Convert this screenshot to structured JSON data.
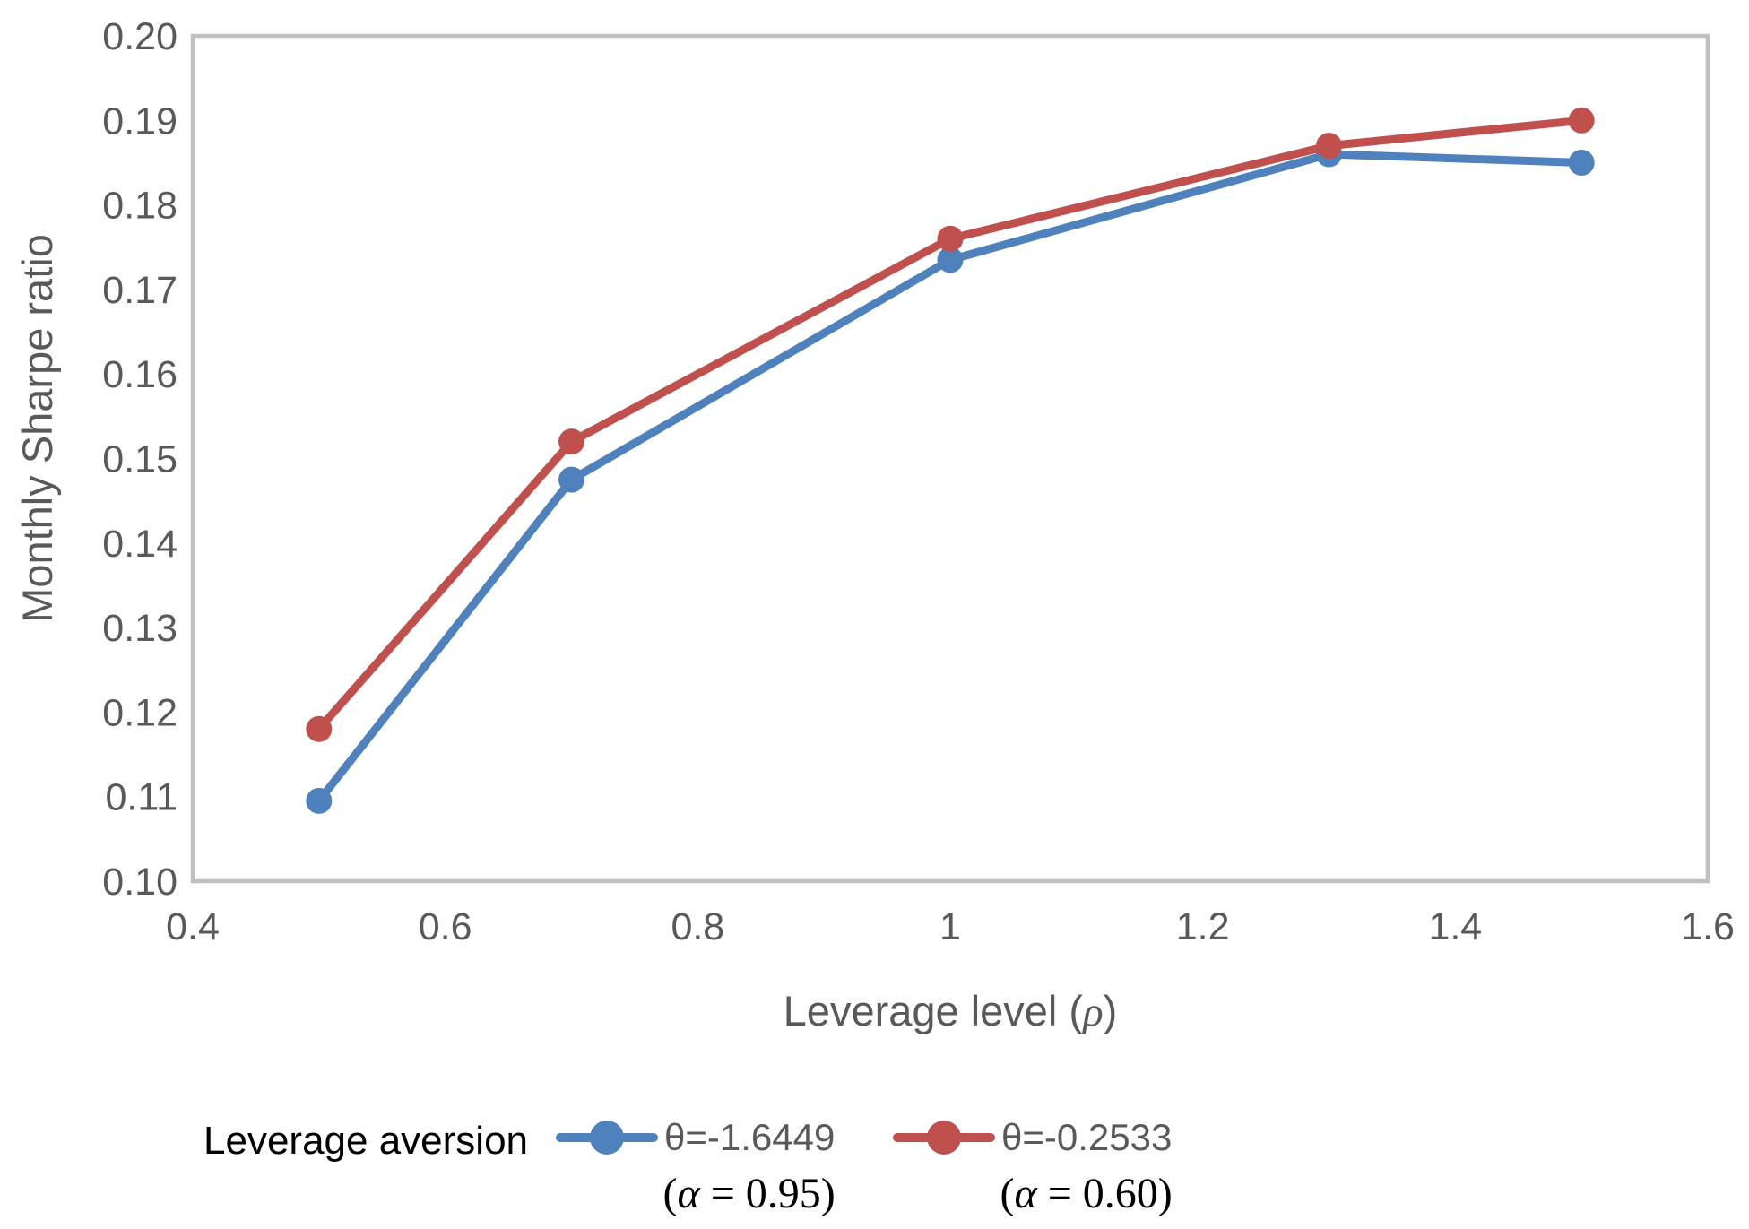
{
  "colors": {
    "axis_line": "#BFBFBF",
    "tick_text": "#595959",
    "axis_title_text": "#595959",
    "legend_title_text": "#000000",
    "series_blue": "#4F81BD",
    "series_red": "#C0504D",
    "background": "#FFFFFF"
  },
  "chart_data": {
    "type": "line",
    "title": "",
    "xlabel": "Leverage level (ρ)",
    "xlabel_prefix": "Leverage level (",
    "xlabel_symbol": "ρ",
    "xlabel_suffix": ")",
    "ylabel": "Monthly Sharpe ratio",
    "xlim": [
      0.4,
      1.6
    ],
    "ylim": [
      0.1,
      0.2
    ],
    "grid": false,
    "legend_position": "bottom",
    "legend_title": "Leverage aversion",
    "x_ticks": [
      {
        "value": 0.4,
        "label": "0.4"
      },
      {
        "value": 0.6,
        "label": "0.6"
      },
      {
        "value": 0.8,
        "label": "0.8"
      },
      {
        "value": 1.0,
        "label": "1"
      },
      {
        "value": 1.2,
        "label": "1.2"
      },
      {
        "value": 1.4,
        "label": "1.4"
      },
      {
        "value": 1.6,
        "label": "1.6"
      }
    ],
    "y_ticks": [
      {
        "value": 0.1,
        "label": "0.10"
      },
      {
        "value": 0.11,
        "label": "0.11"
      },
      {
        "value": 0.12,
        "label": "0.12"
      },
      {
        "value": 0.13,
        "label": "0.13"
      },
      {
        "value": 0.14,
        "label": "0.14"
      },
      {
        "value": 0.15,
        "label": "0.15"
      },
      {
        "value": 0.16,
        "label": "0.16"
      },
      {
        "value": 0.17,
        "label": "0.17"
      },
      {
        "value": 0.18,
        "label": "0.18"
      },
      {
        "value": 0.19,
        "label": "0.19"
      },
      {
        "value": 0.2,
        "label": "0.20"
      }
    ],
    "x": [
      0.5,
      0.7,
      1.0,
      1.3,
      1.5
    ],
    "series": [
      {
        "name": "θ=-1.6449",
        "sub": "(α = 0.95)",
        "sub_prefix": "(",
        "sub_symbol": "α",
        "sub_suffix": " = 0.95)",
        "color": "#4F81BD",
        "values": [
          0.1095,
          0.1475,
          0.1735,
          0.186,
          0.185
        ]
      },
      {
        "name": "θ=-0.2533",
        "sub": "(α = 0.60)",
        "sub_prefix": "(",
        "sub_symbol": "α",
        "sub_suffix": " = 0.60)",
        "color": "#C0504D",
        "values": [
          0.118,
          0.152,
          0.176,
          0.187,
          0.19
        ]
      }
    ]
  }
}
